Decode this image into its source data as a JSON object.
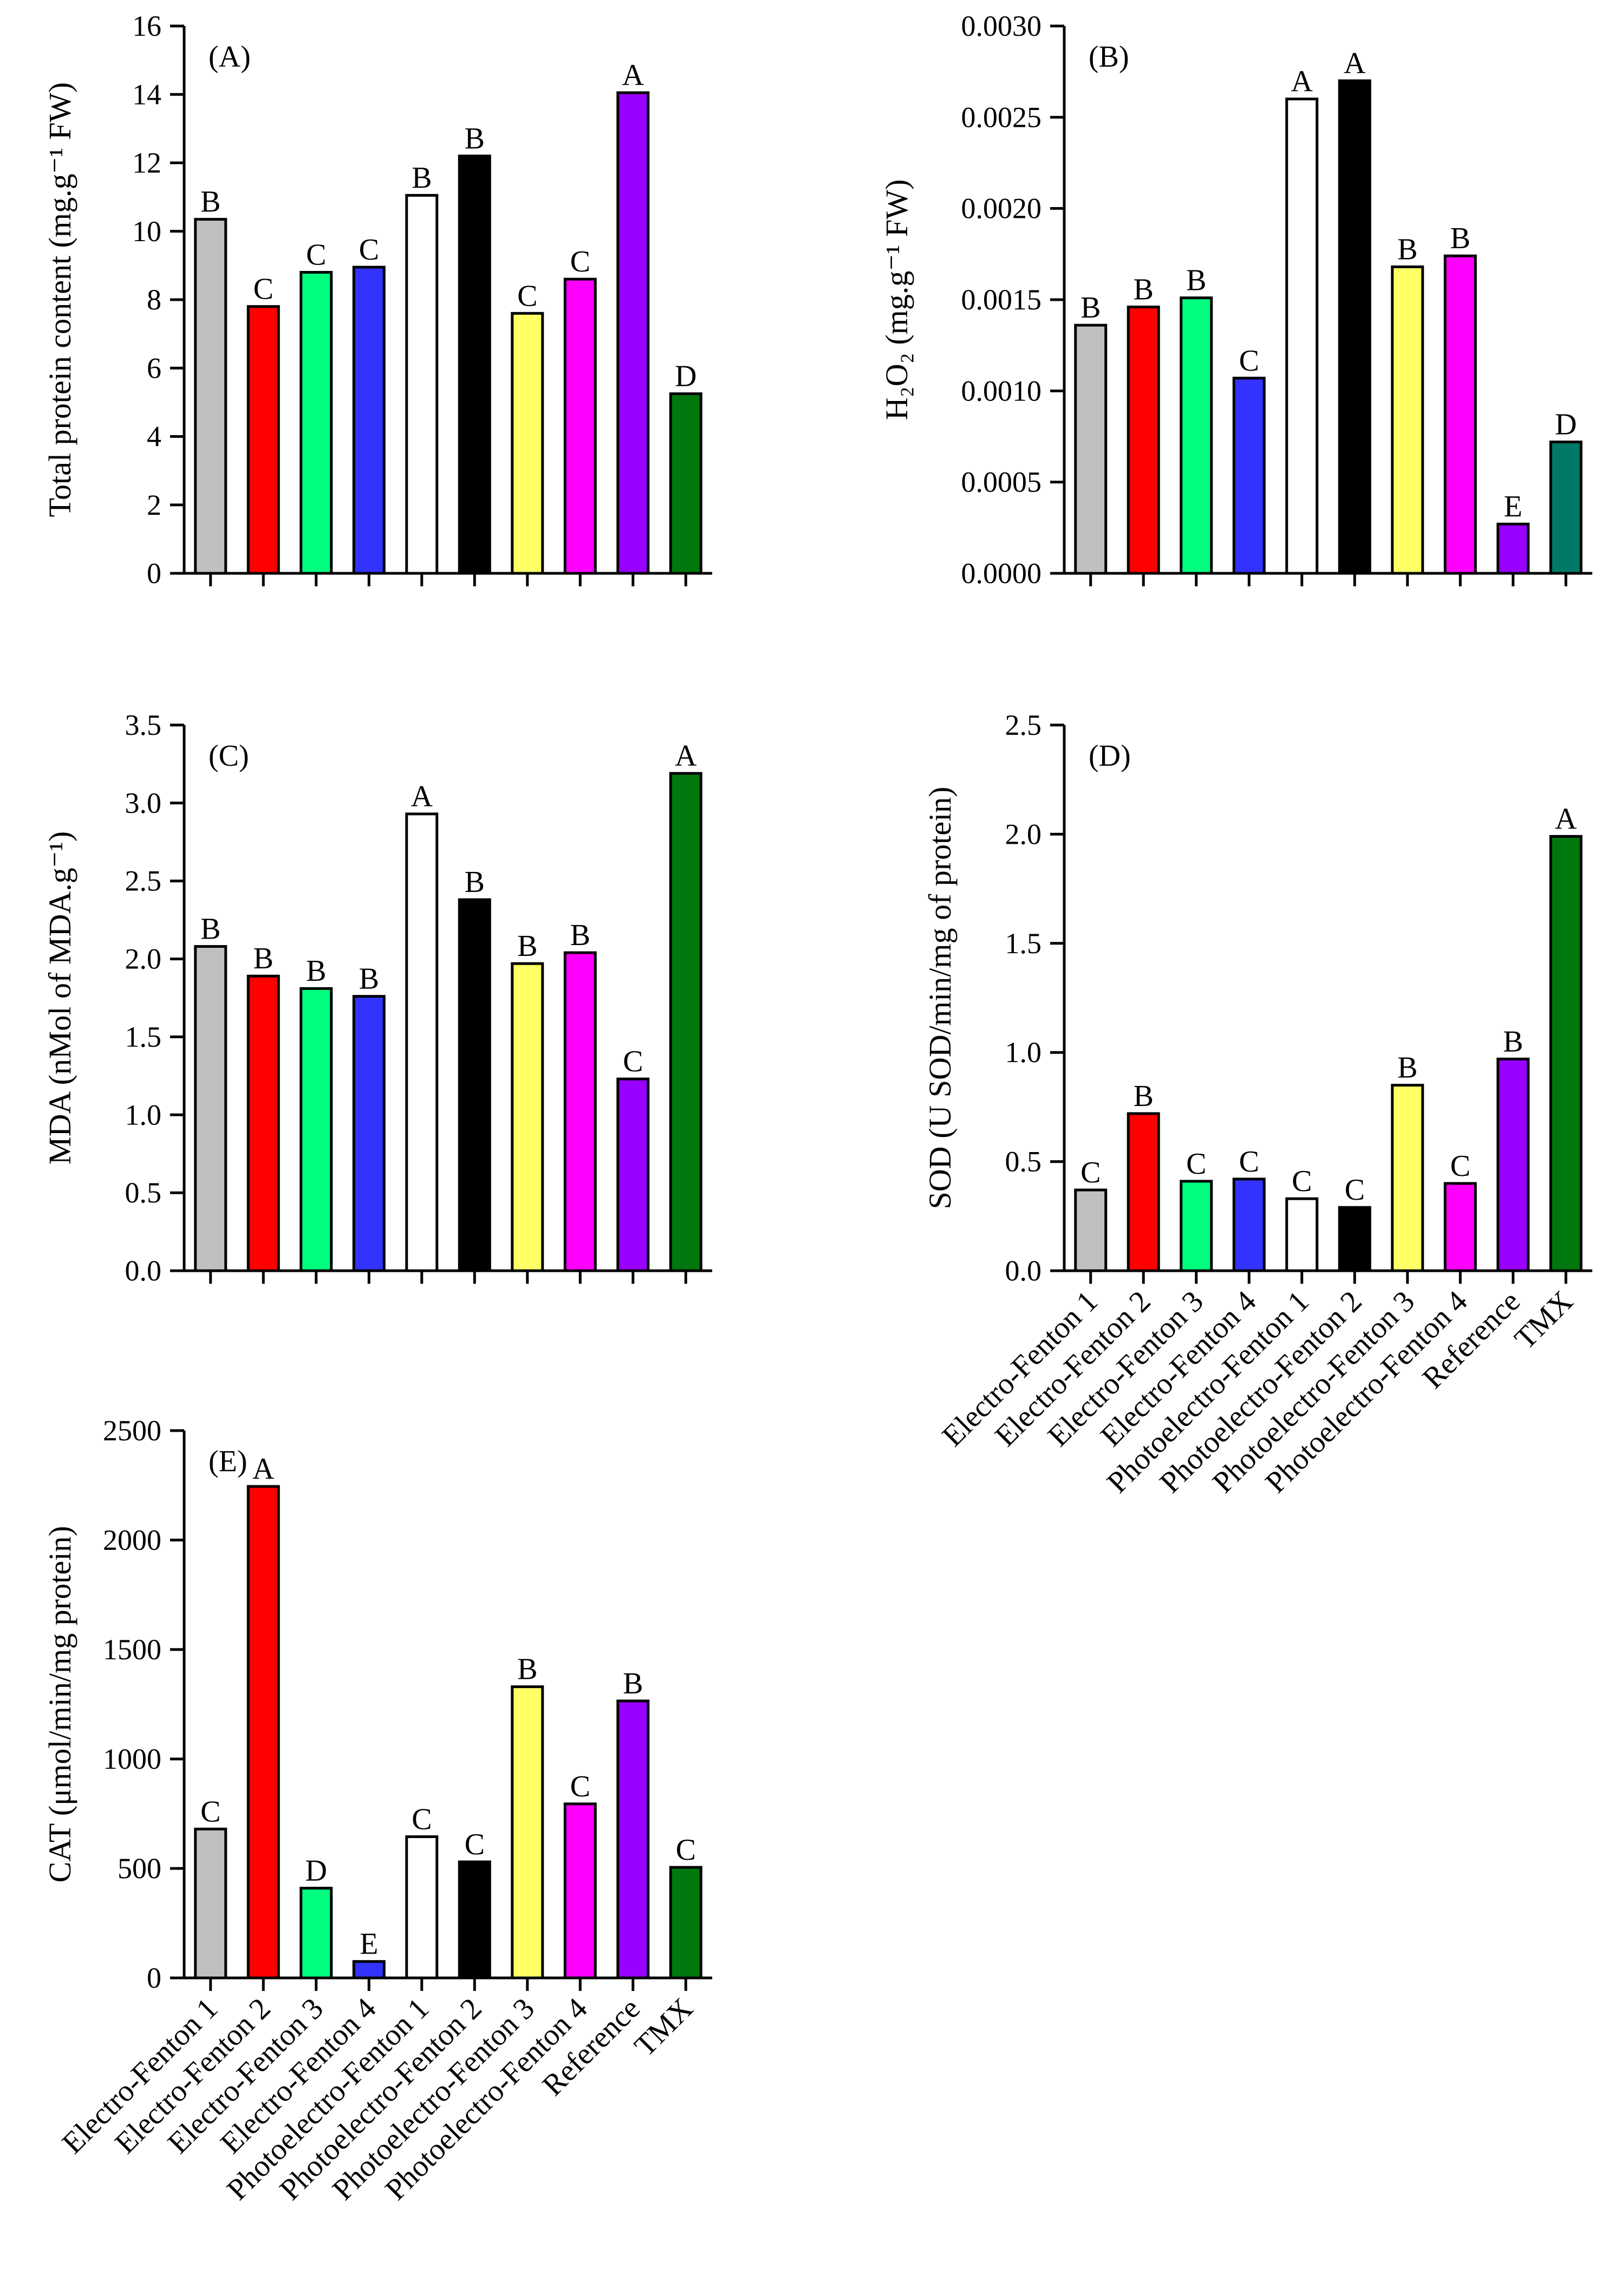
{
  "colors": [
    "#c0c0c0",
    "#ff0000",
    "#00ff7f",
    "#3333ff",
    "#ffffff",
    "#000000",
    "#ffff66",
    "#ff00ff",
    "#9900ff",
    "#00780e"
  ],
  "chart_data": [
    {
      "type": "bar",
      "panel": "(A)",
      "ylabel": "Total protein content (mg.g⁻¹ FW)",
      "ylim": [
        0,
        16
      ],
      "yticks": [
        "0",
        "2",
        "4",
        "6",
        "8",
        "10",
        "12",
        "14",
        "16"
      ],
      "categories": [
        "Electro-Fenton 1",
        "Electro-Fenton 2",
        "Electro-Fenton 3",
        "Electro-Fenton 4",
        "Photoelectro-Fenton 1",
        "Photoelectro-Fenton 2",
        "Photoelectro-Fenton 3",
        "Photoelectro-Fenton 4",
        "Reference",
        "TMX"
      ],
      "values": [
        10.35,
        7.8,
        8.8,
        8.95,
        11.05,
        12.2,
        7.6,
        8.6,
        14.05,
        5.25
      ],
      "letters": [
        "B",
        "C",
        "C",
        "C",
        "B",
        "B",
        "C",
        "C",
        "A",
        "D"
      ]
    },
    {
      "type": "bar",
      "panel": "(B)",
      "ylabel": "H₂O₂ (mg.g⁻¹ FW)",
      "ylim": [
        0,
        0.003
      ],
      "yticks": [
        "0.0000",
        "0.0005",
        "0.0010",
        "0.0015",
        "0.0020",
        "0.0025",
        "0.0030"
      ],
      "categories": [
        "Electro-Fenton 1",
        "Electro-Fenton 2",
        "Electro-Fenton 3",
        "Electro-Fenton 4",
        "Photoelectro-Fenton 1",
        "Photoelectro-Fenton 2",
        "Photoelectro-Fenton 3",
        "Photoelectro-Fenton 4",
        "Reference",
        "TMX"
      ],
      "values": [
        0.00136,
        0.00146,
        0.00151,
        0.00107,
        0.0026,
        0.0027,
        0.00168,
        0.00174,
        0.00027,
        0.00072
      ],
      "letters": [
        "B",
        "B",
        "B",
        "C",
        "A",
        "A",
        "B",
        "B",
        "E",
        "D"
      ],
      "last_bar_color": "#007a66"
    },
    {
      "type": "bar",
      "panel": "(C)",
      "ylabel": "MDA (nMol of MDA.g⁻¹)",
      "ylim": [
        0,
        3.5
      ],
      "yticks": [
        "0.0",
        "0.5",
        "1.0",
        "1.5",
        "2.0",
        "2.5",
        "3.0",
        "3.5"
      ],
      "categories": [
        "Electro-Fenton 1",
        "Electro-Fenton 2",
        "Electro-Fenton 3",
        "Electro-Fenton 4",
        "Photoelectro-Fenton 1",
        "Photoelectro-Fenton 2",
        "Photoelectro-Fenton 3",
        "Photoelectro-Fenton 4",
        "Reference",
        "TMX"
      ],
      "values": [
        2.08,
        1.89,
        1.81,
        1.76,
        2.93,
        2.38,
        1.97,
        2.04,
        1.23,
        3.19
      ],
      "letters": [
        "B",
        "B",
        "B",
        "B",
        "A",
        "B",
        "B",
        "B",
        "C",
        "A"
      ]
    },
    {
      "type": "bar",
      "panel": "(D)",
      "ylabel": "SOD (U SOD/min/mg of protein)",
      "ylim": [
        0,
        2.5
      ],
      "yticks": [
        "0.0",
        "0.5",
        "1.0",
        "1.5",
        "2.0",
        "2.5"
      ],
      "categories": [
        "Electro-Fenton 1",
        "Electro-Fenton 2",
        "Electro-Fenton 3",
        "Electro-Fenton 4",
        "Photoelectro-Fenton 1",
        "Photoelectro-Fenton 2",
        "Photoelectro-Fenton 3",
        "Photoelectro-Fenton 4",
        "Reference",
        "TMX"
      ],
      "values": [
        0.37,
        0.72,
        0.41,
        0.42,
        0.33,
        0.29,
        0.85,
        0.4,
        0.97,
        1.99
      ],
      "letters": [
        "C",
        "B",
        "C",
        "C",
        "C",
        "C",
        "B",
        "C",
        "B",
        "A"
      ],
      "xtick_labels_shown": true
    },
    {
      "type": "bar",
      "panel": "(E)",
      "ylabel": "CAT (μmol/min/mg protein)",
      "ylim": [
        0,
        2500
      ],
      "yticks": [
        "0",
        "500",
        "1000",
        "1500",
        "2000",
        "2500"
      ],
      "categories": [
        "Electro-Fenton 1",
        "Electro-Fenton 2",
        "Electro-Fenton 3",
        "Electro-Fenton 4",
        "Photoelectro-Fenton 1",
        "Photoelectro-Fenton 2",
        "Photoelectro-Fenton 3",
        "Photoelectro-Fenton 4",
        "Reference",
        "TMX"
      ],
      "values": [
        680,
        2245,
        410,
        75,
        645,
        530,
        1330,
        795,
        1265,
        505
      ],
      "letters": [
        "C",
        "A",
        "D",
        "E",
        "C",
        "C",
        "B",
        "C",
        "B",
        "C"
      ],
      "xtick_labels_shown": true
    }
  ]
}
